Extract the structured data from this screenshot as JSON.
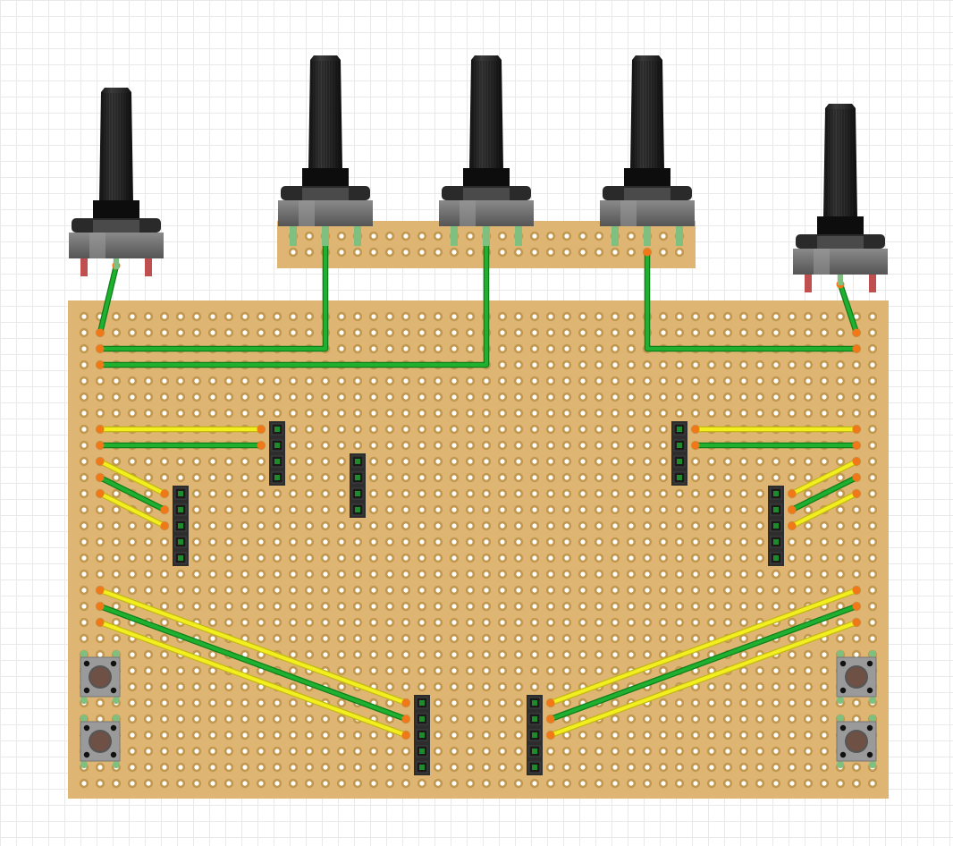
{
  "colors": {
    "board": "#deb572",
    "pad_ring": "#c19850",
    "hole": "#ffffff",
    "wire_green": "#1fb030",
    "wire_green_edge": "#0e7d1c",
    "wire_yellow": "#f3ee20",
    "wire_yellow_edge": "#c2b814",
    "wire_end_orange": "#f07818",
    "header_body": "#2d2d2d",
    "header_pin": "#1f8a2a",
    "pot_knob": "#1b1b1b",
    "pot_body": "#707070",
    "pot_leg": "#c05050",
    "button_body": "#9a9a9a",
    "button_cap": "#6e5045"
  },
  "components": {
    "potentiometers": [
      {
        "name": "pot-1",
        "icon": "potentiometer-icon"
      },
      {
        "name": "pot-2",
        "icon": "potentiometer-icon"
      },
      {
        "name": "pot-3",
        "icon": "potentiometer-icon"
      },
      {
        "name": "pot-4",
        "icon": "potentiometer-icon"
      },
      {
        "name": "pot-5",
        "icon": "potentiometer-icon"
      }
    ],
    "pin_headers": [
      {
        "name": "header-1",
        "pins": 4
      },
      {
        "name": "header-2",
        "pins": 4
      },
      {
        "name": "header-3",
        "pins": 4
      },
      {
        "name": "header-4",
        "pins": 5
      },
      {
        "name": "header-5",
        "pins": 5
      },
      {
        "name": "header-6",
        "pins": 5
      },
      {
        "name": "header-7",
        "pins": 5
      }
    ],
    "push_buttons": [
      {
        "name": "button-1",
        "icon": "push-button-icon"
      },
      {
        "name": "button-2",
        "icon": "push-button-icon"
      },
      {
        "name": "button-3",
        "icon": "push-button-icon"
      },
      {
        "name": "button-4",
        "icon": "push-button-icon"
      }
    ],
    "wires": {
      "green": 15,
      "yellow": 10
    }
  }
}
